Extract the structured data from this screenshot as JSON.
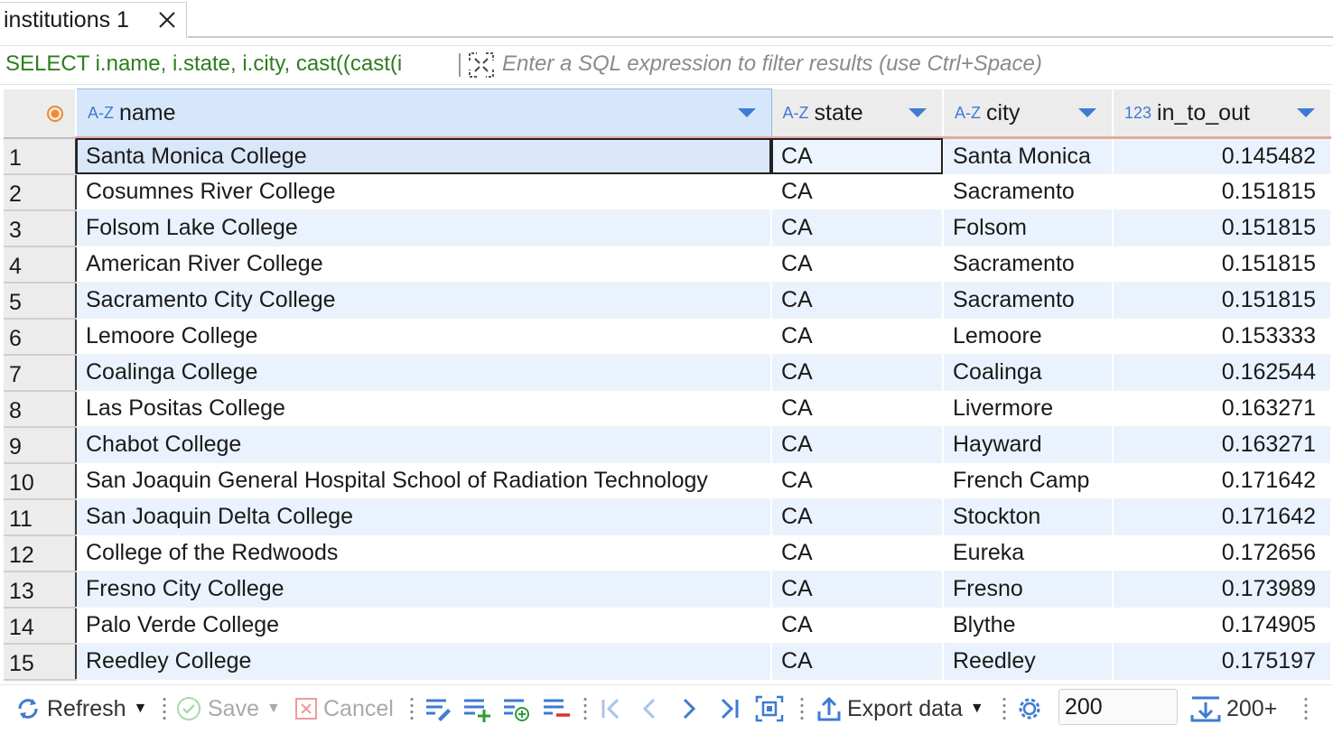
{
  "tab": {
    "label": "institutions 1"
  },
  "filter": {
    "sql": "SELECT i.name, i.state, i.city, cast((cast(i",
    "placeholder": "Enter a SQL expression to filter results (use Ctrl+Space)"
  },
  "grid": {
    "columns": [
      {
        "type": "A-Z",
        "name": "name"
      },
      {
        "type": "A-Z",
        "name": "state"
      },
      {
        "type": "A-Z",
        "name": "city"
      },
      {
        "type": "123",
        "name": "in_to_out"
      }
    ],
    "rows": [
      {
        "n": "1",
        "name": "Santa Monica College",
        "state": "CA",
        "city": "Santa Monica",
        "in_to_out": "0.145482"
      },
      {
        "n": "2",
        "name": "Cosumnes River College",
        "state": "CA",
        "city": "Sacramento",
        "in_to_out": "0.151815"
      },
      {
        "n": "3",
        "name": "Folsom Lake College",
        "state": "CA",
        "city": "Folsom",
        "in_to_out": "0.151815"
      },
      {
        "n": "4",
        "name": "American River College",
        "state": "CA",
        "city": "Sacramento",
        "in_to_out": "0.151815"
      },
      {
        "n": "5",
        "name": "Sacramento City College",
        "state": "CA",
        "city": "Sacramento",
        "in_to_out": "0.151815"
      },
      {
        "n": "6",
        "name": "Lemoore College",
        "state": "CA",
        "city": "Lemoore",
        "in_to_out": "0.153333"
      },
      {
        "n": "7",
        "name": "Coalinga College",
        "state": "CA",
        "city": "Coalinga",
        "in_to_out": "0.162544"
      },
      {
        "n": "8",
        "name": "Las Positas College",
        "state": "CA",
        "city": "Livermore",
        "in_to_out": "0.163271"
      },
      {
        "n": "9",
        "name": "Chabot College",
        "state": "CA",
        "city": "Hayward",
        "in_to_out": "0.163271"
      },
      {
        "n": "10",
        "name": "San Joaquin General Hospital School of Radiation Technology",
        "state": "CA",
        "city": "French Camp",
        "in_to_out": "0.171642"
      },
      {
        "n": "11",
        "name": "San Joaquin Delta College",
        "state": "CA",
        "city": "Stockton",
        "in_to_out": "0.171642"
      },
      {
        "n": "12",
        "name": "College of the Redwoods",
        "state": "CA",
        "city": "Eureka",
        "in_to_out": "0.172656"
      },
      {
        "n": "13",
        "name": "Fresno City College",
        "state": "CA",
        "city": "Fresno",
        "in_to_out": "0.173989"
      },
      {
        "n": "14",
        "name": "Palo Verde College",
        "state": "CA",
        "city": "Blythe",
        "in_to_out": "0.174905"
      },
      {
        "n": "15",
        "name": "Reedley College",
        "state": "CA",
        "city": "Reedley",
        "in_to_out": "0.175197"
      }
    ]
  },
  "toolbar": {
    "refresh_label": "Refresh",
    "save_label": "Save",
    "cancel_label": "Cancel",
    "export_label": "Export data",
    "fetch_size": "200",
    "fetch_more_label": "200+"
  },
  "colors": {
    "accent": "#3e7bd2",
    "sql_text": "#2e7d1e",
    "row_alt": "#eaf2fd",
    "header_underline": "#e9a79b"
  }
}
